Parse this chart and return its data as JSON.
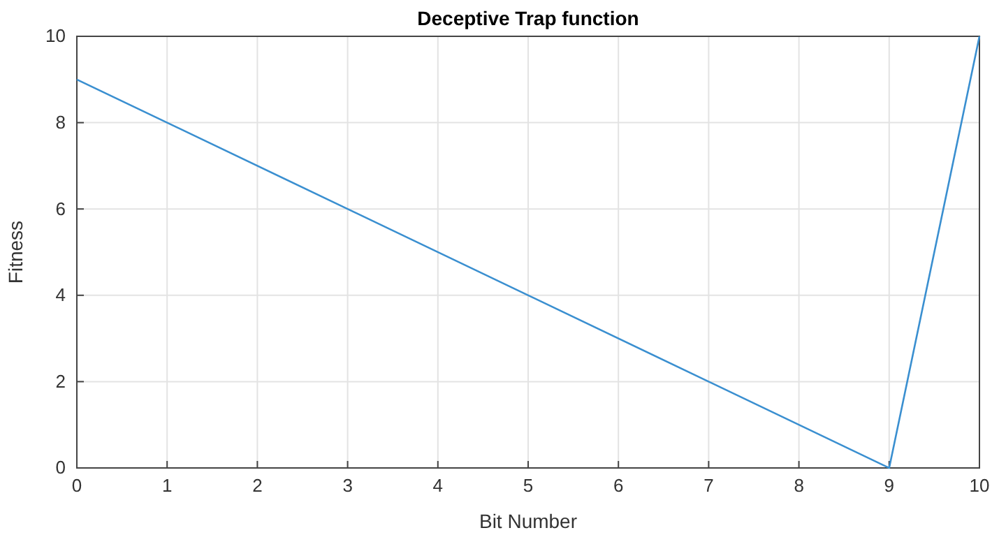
{
  "chart_data": {
    "type": "line",
    "title": "Deceptive Trap function",
    "xlabel": "Bit Number",
    "ylabel": "Fitness",
    "x": [
      0,
      9,
      10
    ],
    "series": [
      {
        "color": "#3a8fd0",
        "values": [
          9,
          0,
          10
        ]
      }
    ],
    "xlim": [
      0,
      10
    ],
    "xticks": [
      0,
      1,
      2,
      3,
      4,
      5,
      6,
      7,
      8,
      9,
      10
    ],
    "ylim": [
      0,
      10
    ],
    "yticks": [
      0,
      2,
      4,
      6,
      8,
      10
    ],
    "grid": true
  }
}
